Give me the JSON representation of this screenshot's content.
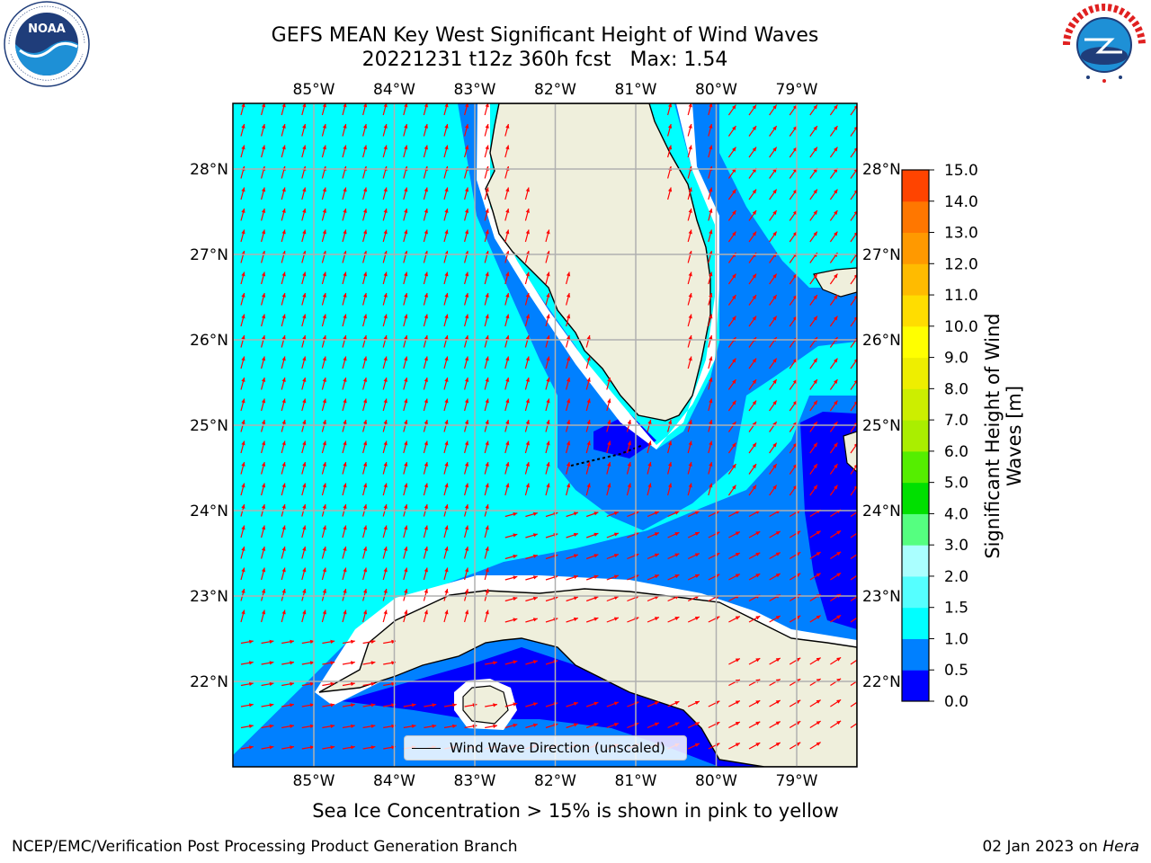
{
  "header": {
    "title_line1": "GEFS MEAN Key West Significant Height of Wind Waves",
    "title_line2": "20221231 t12z 360h fcst   Max: 1.54"
  },
  "logos": {
    "left": {
      "icon": "noaa-logo",
      "text": "NOAA",
      "ring_text": "NATIONAL OCEANIC AND ATMOSPHERIC ADMINISTRATION · U.S. DEPARTMENT OF COMMERCE"
    },
    "right": {
      "icon": "nws-logo",
      "ring_text": "NATIONAL WEATHER SERVICE"
    }
  },
  "map": {
    "lon_labels": [
      "85°W",
      "84°W",
      "83°W",
      "82°W",
      "81°W",
      "80°W",
      "79°W"
    ],
    "lat_labels": [
      "28°N",
      "27°N",
      "26°N",
      "25°N",
      "24°N",
      "23°N",
      "22°N"
    ],
    "legend_label": "Wind Wave Direction (unscaled)",
    "colors": {
      "land": "#efefdc",
      "coast": "#000000",
      "arrow": "#ff0000",
      "grid": "#b0b0b0",
      "band_0_0p5": "#0000ff",
      "band_0p5_1": "#0080ff",
      "band_1_1p5": "#00ffff"
    }
  },
  "colorbar": {
    "ticks": [
      "15.0",
      "14.0",
      "13.0",
      "12.0",
      "11.0",
      "10.0",
      "9.0",
      "8.0",
      "7.0",
      "6.0",
      "5.0",
      "4.0",
      "3.0",
      "2.0",
      "1.5",
      "1.0",
      "0.5",
      "0.0"
    ],
    "colors_bottom_to_top": [
      "#0000ff",
      "#0080ff",
      "#00ffff",
      "#55ffff",
      "#aaffff",
      "#55ff80",
      "#00e000",
      "#55ee00",
      "#aaee00",
      "#ccee00",
      "#eeee00",
      "#ffff00",
      "#ffdd00",
      "#ffbb00",
      "#ff9900",
      "#ff7700",
      "#ff4400"
    ],
    "label": "Significant Height of Wind Waves [m]"
  },
  "notes": {
    "ice": "Sea Ice Concentration > 15% is shown in pink to yellow"
  },
  "footer": {
    "left": "NCEP/EMC/Verification Post Processing Product Generation Branch",
    "right_date": "02 Jan 2023 on ",
    "right_host": "Hera"
  }
}
